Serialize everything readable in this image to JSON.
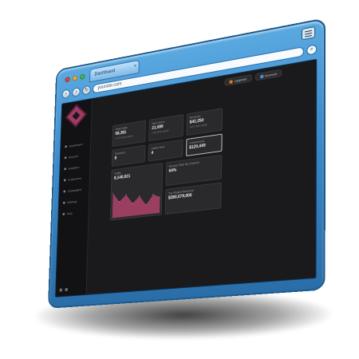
{
  "browser": {
    "tab_label": "Dashboard",
    "tab_close": "×",
    "url": "yoursite.com",
    "nav": {
      "back": "‹",
      "forward": "›",
      "reload": "↻"
    },
    "icons": [
      "window-close-icon",
      "window-minimize-icon",
      "window-maximize-icon",
      "menu-icon",
      "search-icon"
    ],
    "dot_colors": [
      "#e2463f",
      "#f2b230",
      "#43b94a"
    ]
  },
  "topbar": {
    "buttons": [
      {
        "label": "Upgrade",
        "swatch": "#e07a1f"
      },
      {
        "label": "Account",
        "swatch": "#4a90d9"
      }
    ]
  },
  "sidebar": {
    "items": [
      {
        "label": "Dashboard"
      },
      {
        "label": "Reports"
      },
      {
        "label": "Analytics"
      },
      {
        "label": "Customers"
      },
      {
        "label": "Campaigns"
      },
      {
        "label": "Settings"
      },
      {
        "label": "Help"
      }
    ]
  },
  "cards": [
    {
      "label": "Total Visits",
      "value": "58,381",
      "sub": "+12% this week"
    },
    {
      "label": "New Users",
      "value": "21,089",
      "sub": "+4% this week"
    },
    {
      "label": "Revenue",
      "value": "$42,250",
      "sub": "+8% this week"
    },
    {
      "label": "Sessions",
      "value": "8",
      "sub": ""
    },
    {
      "label": "Active Now",
      "value": "4",
      "sub": ""
    },
    {
      "label": "Conversions",
      "value": "$120,449",
      "sub": ""
    },
    {
      "label": "Traffic",
      "value": "8,140,921",
      "sub": ""
    },
    {
      "label": "Bounce Rate By Channel",
      "value": "64%",
      "sub": ""
    },
    {
      "label": "Top Region Revenue",
      "value": "$280,079,000",
      "sub": ""
    }
  ],
  "chart_data": {
    "type": "area",
    "values": [
      8,
      5,
      7,
      4,
      6,
      3,
      6,
      5
    ],
    "color": "#9a3f62"
  }
}
